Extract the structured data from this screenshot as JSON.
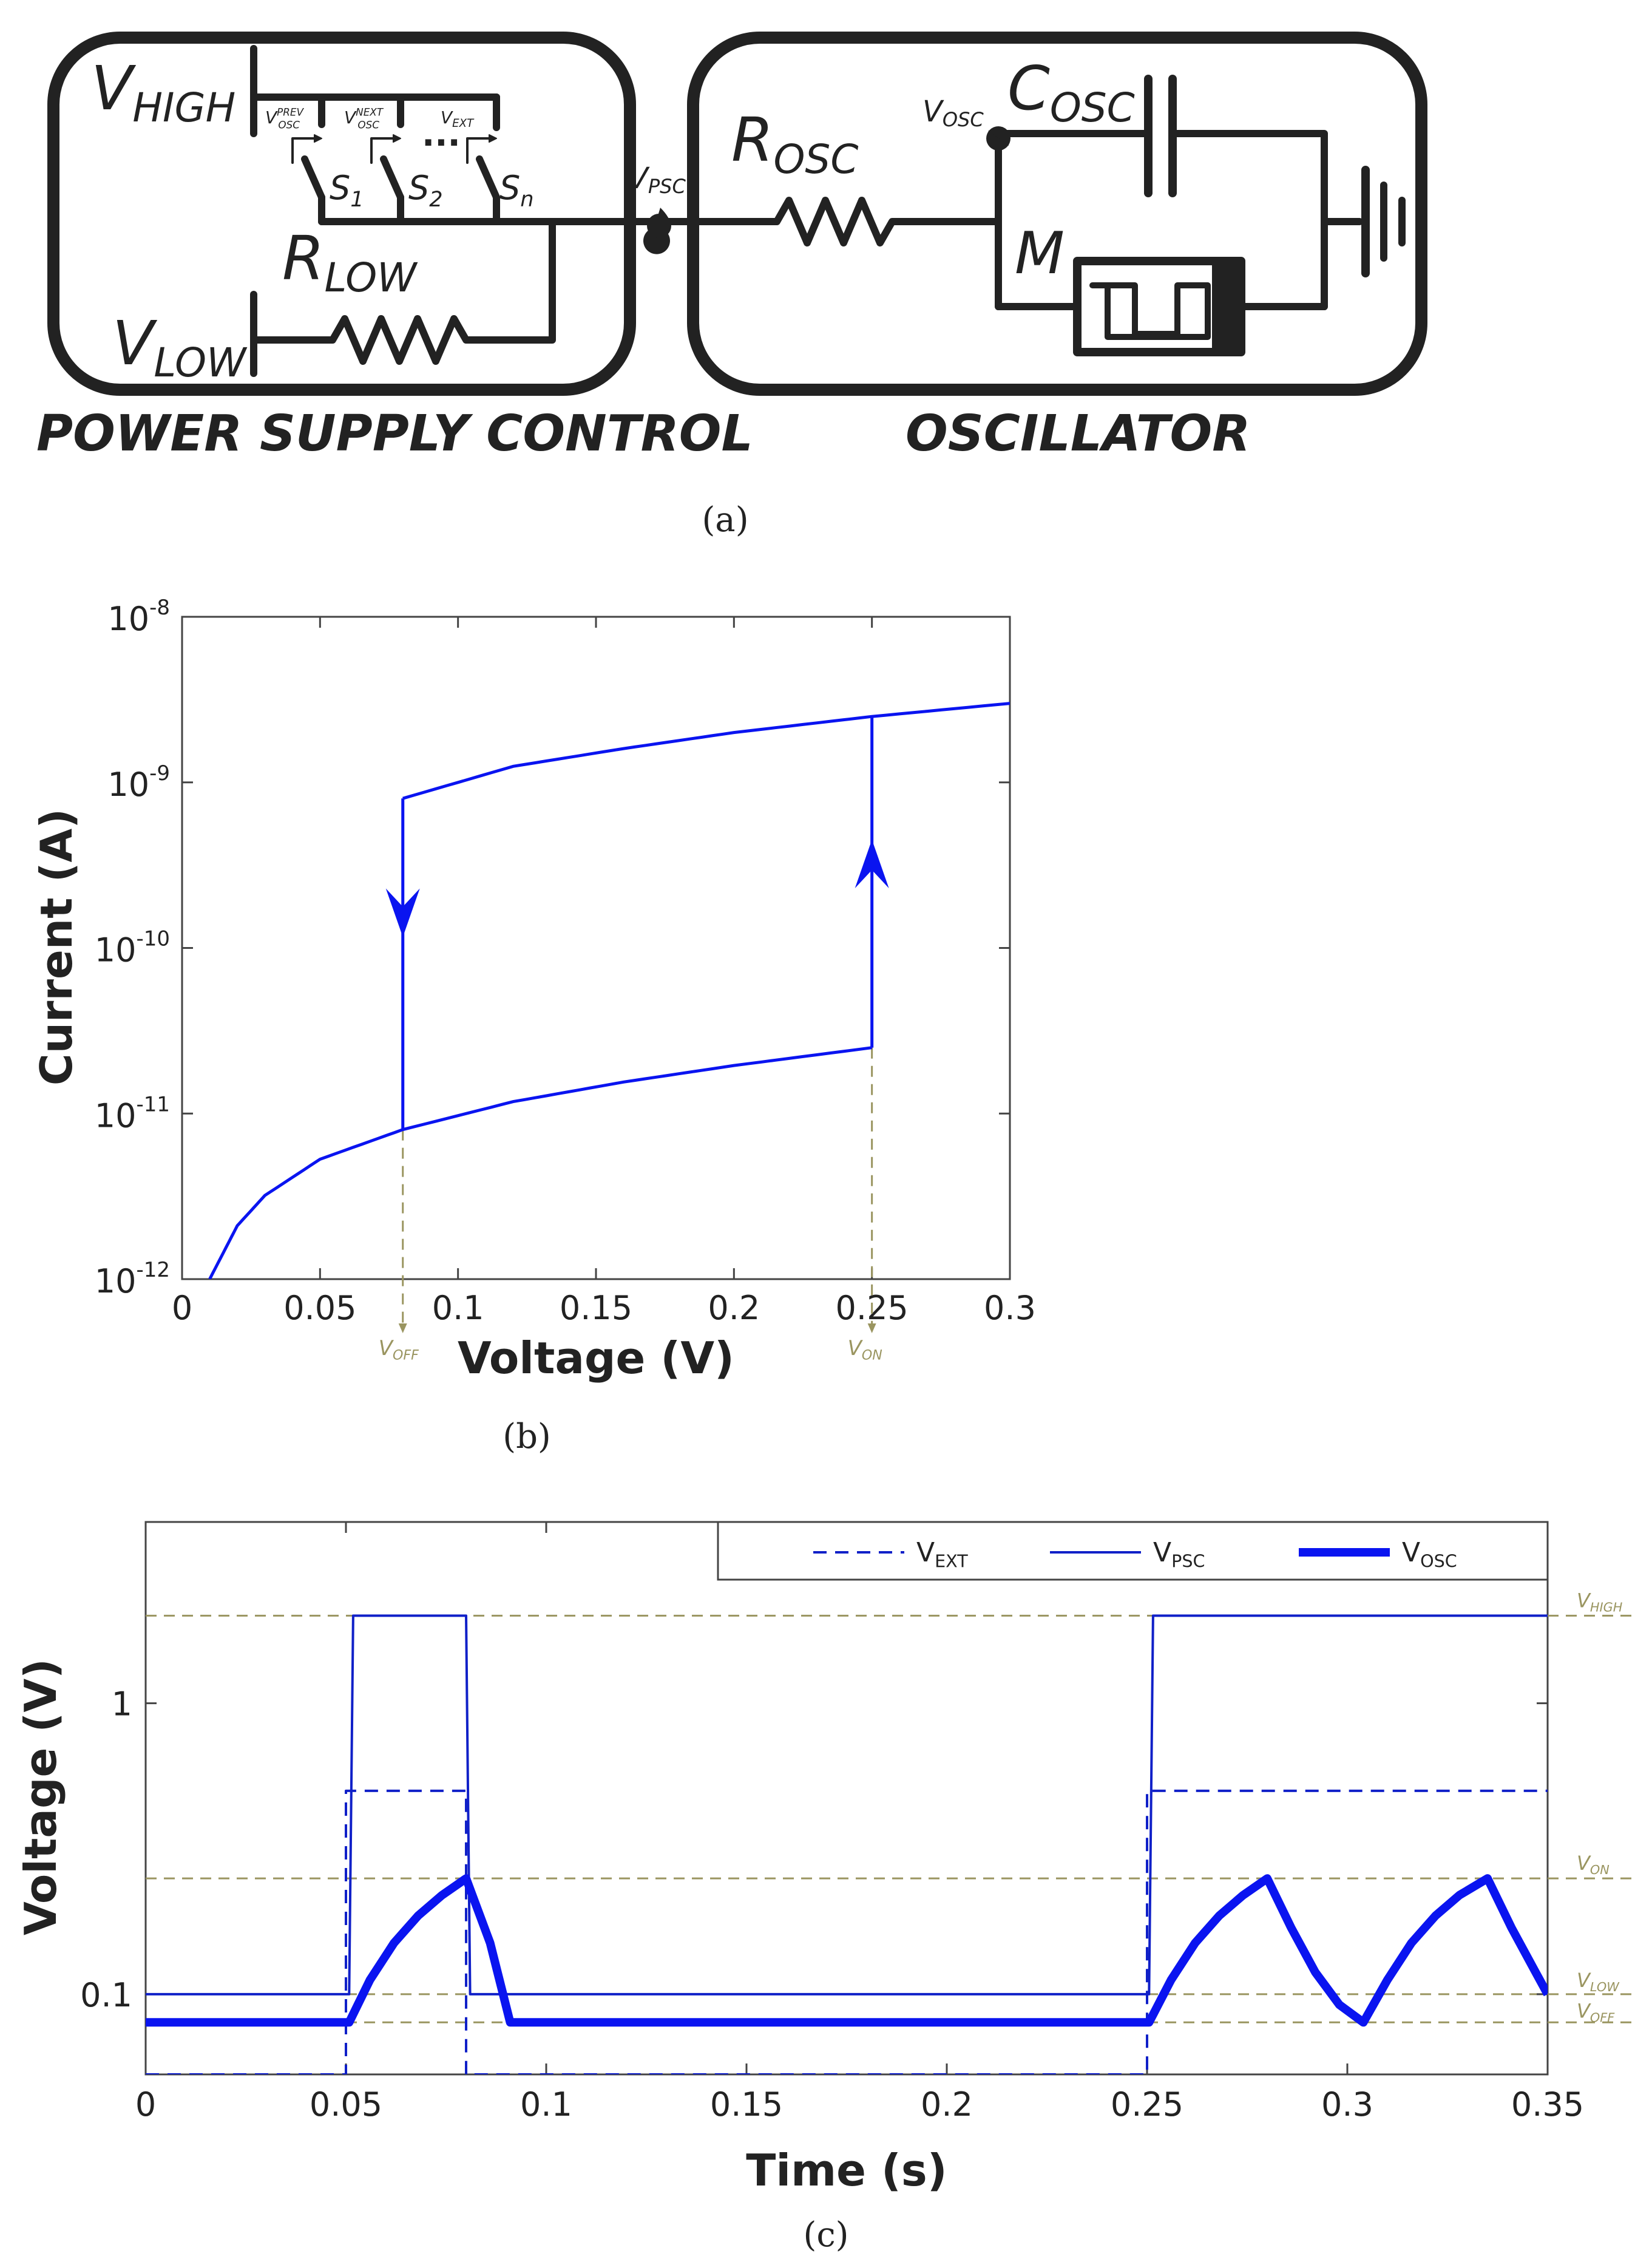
{
  "panel_a": {
    "caption": "(a)",
    "psc_title": "POWER SUPPLY CONTROL",
    "osc_title": "OSCILLATOR",
    "v_high": "V",
    "v_high_sub": "HIGH",
    "v_low": "V",
    "v_low_sub": "LOW",
    "r_low": "R",
    "r_low_sub": "LOW",
    "r_osc": "R",
    "r_osc_sub": "OSC",
    "c_osc": "C",
    "c_osc_sub": "OSC",
    "memristor": "M",
    "v_psc": "V",
    "v_psc_sub": "PSC",
    "v_osc": "V",
    "v_osc_sub": "OSC",
    "switch_inputs": [
      {
        "v": "V",
        "sup": "PREV",
        "sub": "OSC"
      },
      {
        "v": "V",
        "sup": "NEXT",
        "sub": "OSC"
      },
      {
        "v": "V",
        "sub": "EXT"
      }
    ],
    "switches": [
      {
        "s": "S",
        "sub": "1"
      },
      {
        "s": "S",
        "sub": "2"
      },
      {
        "s": "S",
        "sub": "n"
      }
    ],
    "ellipsis": "..."
  },
  "panel_b": {
    "caption": "(b)",
    "xlabel": "Voltage (V)",
    "ylabel": "Current (A)",
    "x_ticks": [
      "0",
      "0.05",
      "0.1",
      "0.15",
      "0.2",
      "0.25",
      "0.3"
    ],
    "y_ticks": [
      {
        "base": "10",
        "exp": "-12"
      },
      {
        "base": "10",
        "exp": "-11"
      },
      {
        "base": "10",
        "exp": "-10"
      },
      {
        "base": "10",
        "exp": "-9"
      },
      {
        "base": "10",
        "exp": "-8"
      }
    ],
    "v_off": "V",
    "v_off_sub": "OFF",
    "v_on": "V",
    "v_on_sub": "ON"
  },
  "panel_c": {
    "caption": "(c)",
    "xlabel": "Time (s)",
    "ylabel": "Voltage (V)",
    "x_ticks": [
      "0",
      "0.05",
      "0.1",
      "0.15",
      "0.2",
      "0.25",
      "0.3",
      "0.35"
    ],
    "y_ticks": [
      "0.1",
      "1"
    ],
    "legend": [
      {
        "v": "V",
        "sub": "EXT"
      },
      {
        "v": "V",
        "sub": "PSC"
      },
      {
        "v": "V",
        "sub": "OSC"
      }
    ],
    "ref_lines": [
      {
        "v": "V",
        "sub": "HIGH"
      },
      {
        "v": "V",
        "sub": "ON"
      },
      {
        "v": "V",
        "sub": "LOW"
      },
      {
        "v": "V",
        "sub": "OFF"
      }
    ]
  },
  "colors": {
    "trace": "#0a14f0",
    "trace_dark": "#1020c8",
    "ref": "#9a9560",
    "ink": "#222222"
  },
  "chart_data": [
    {
      "type": "line",
      "panel": "b",
      "xlabel": "Voltage (V)",
      "ylabel": "Current (A)",
      "xlim": [
        0,
        0.3
      ],
      "ylim": [
        1e-12,
        1e-08
      ],
      "yscale": "log",
      "grid": false,
      "series": [
        {
          "x": [
            0.01,
            0.02,
            0.03,
            0.05,
            0.08,
            0.12,
            0.16,
            0.2,
            0.25
          ],
          "y": [
            1e-12,
            2.1e-12,
            3.2e-12,
            5.3e-12,
            8e-12,
            1.18e-11,
            1.55e-11,
            1.95e-11,
            2.5e-11
          ]
        },
        {
          "x": [
            0.08,
            0.12,
            0.16,
            0.2,
            0.25,
            0.3
          ],
          "y": [
            8e-10,
            1.25e-09,
            1.6e-09,
            2e-09,
            2.5e-09,
            3e-09
          ]
        }
      ],
      "transitions": [
        {
          "x": 0.25,
          "from": 2.5e-11,
          "to": 2.5e-09,
          "direction": "up"
        },
        {
          "x": 0.08,
          "from": 8e-10,
          "to": 8e-12,
          "direction": "down"
        }
      ],
      "v_off": 0.08,
      "v_on": 0.25
    },
    {
      "type": "line",
      "panel": "c",
      "xlabel": "Time (s)",
      "ylabel": "Voltage (V)",
      "xlim": [
        0,
        0.35
      ],
      "ylim": [
        0.053,
        4.2
      ],
      "yscale": "log",
      "legend_position": "top-right",
      "reference_levels": {
        "V_HIGH": 2.0,
        "V_ON": 0.25,
        "V_LOW": 0.1,
        "V_OFF": 0.08
      },
      "series": [
        {
          "name": "V_EXT",
          "style": "dashed",
          "x": [
            0,
            0.05,
            0.05,
            0.08,
            0.08,
            0.25,
            0.25,
            0.35
          ],
          "y": [
            0.053,
            0.053,
            0.5,
            0.5,
            0.053,
            0.053,
            0.5,
            0.5
          ]
        },
        {
          "name": "V_PSC",
          "style": "thin",
          "x": [
            0,
            0.0508,
            0.0518,
            0.08,
            0.081,
            0.2505,
            0.2515,
            0.35
          ],
          "y": [
            0.1,
            0.1,
            2.0,
            2.0,
            0.1,
            0.1,
            2.0,
            2.0
          ]
        },
        {
          "name": "V_OSC",
          "style": "thick",
          "x": [
            0,
            0.0508,
            0.056,
            0.062,
            0.068,
            0.074,
            0.08,
            0.086,
            0.091,
            0.1,
            0.15,
            0.2,
            0.2505,
            0.256,
            0.262,
            0.268,
            0.274,
            0.28,
            0.286,
            0.292,
            0.298,
            0.304,
            0.31,
            0.316,
            0.322,
            0.328,
            0.335,
            0.341,
            0.347,
            0.35
          ],
          "y": [
            0.08,
            0.08,
            0.112,
            0.15,
            0.186,
            0.219,
            0.25,
            0.15,
            0.08,
            0.08,
            0.08,
            0.08,
            0.08,
            0.112,
            0.15,
            0.186,
            0.219,
            0.25,
            0.169,
            0.119,
            0.092,
            0.08,
            0.112,
            0.15,
            0.186,
            0.219,
            0.25,
            0.169,
            0.119,
            0.1
          ]
        }
      ]
    }
  ]
}
